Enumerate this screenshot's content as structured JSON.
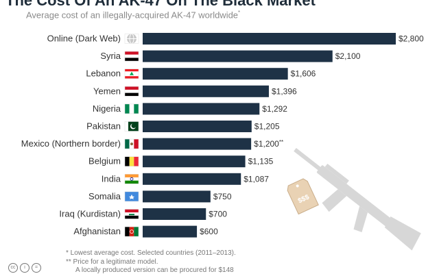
{
  "title": "The Cost Of An AK-47 On The Black Market",
  "subtitle": "Average cost of an illegally-acquired AK-47 worldwide",
  "subtitle_mark": "*",
  "footnotes": [
    "*   Lowest average cost. Selected countries (2011–2013).",
    "** Price for a legitimate model.",
    "A locally produced version can be procured for $148"
  ],
  "price_tag_text": "$$$",
  "colors": {
    "bar": "#1e3246",
    "label": "#333333",
    "tag": "#e9d2b4",
    "gun": "#d7d7d7"
  },
  "chart_data": {
    "type": "bar",
    "orientation": "horizontal",
    "categories": [
      "Online (Dark Web)",
      "Syria",
      "Lebanon",
      "Yemen",
      "Nigeria",
      "Pakistan",
      "Mexico (Northern border)",
      "Belgium",
      "India",
      "Somalia",
      "Iraq (Kurdistan)",
      "Afghanistan"
    ],
    "values": [
      2800,
      2100,
      1606,
      1396,
      1292,
      1205,
      1200,
      1135,
      1087,
      750,
      700,
      600
    ],
    "value_labels": [
      "$2,800",
      "$2,100",
      "$1,606",
      "$1,396",
      "$1,292",
      "$1,205",
      "$1,200",
      "$1,135",
      "$1,087",
      "$750",
      "$700",
      "$600"
    ],
    "value_label_marks": [
      "",
      "",
      "",
      "",
      "",
      "",
      "**",
      "",
      "",
      "",
      "",
      ""
    ],
    "flags": [
      "globe",
      "syria",
      "lebanon",
      "yemen",
      "nigeria",
      "pakistan",
      "mexico",
      "belgium",
      "india",
      "somalia",
      "iraq-kurdistan",
      "afghanistan"
    ],
    "xlim": [
      0,
      2800
    ],
    "grid": false,
    "legend": "none"
  }
}
